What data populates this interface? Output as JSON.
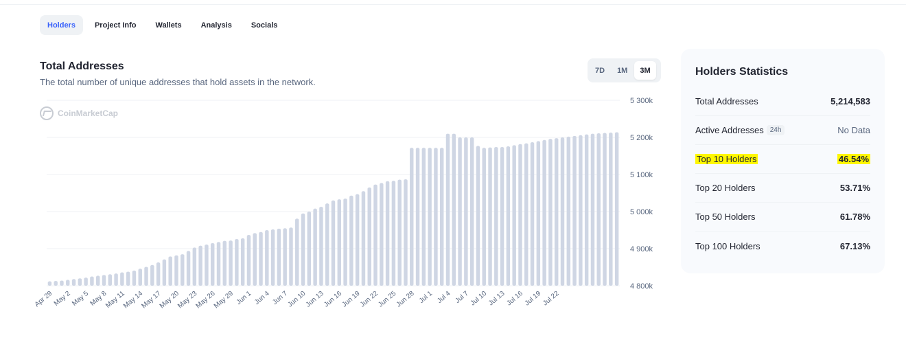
{
  "tabs": [
    {
      "label": "Holders",
      "active": true
    },
    {
      "label": "Project Info",
      "active": false
    },
    {
      "label": "Wallets",
      "active": false
    },
    {
      "label": "Analysis",
      "active": false
    },
    {
      "label": "Socials",
      "active": false
    }
  ],
  "watermark": "CoinMarketCap",
  "ranges": [
    {
      "label": "7D",
      "active": false
    },
    {
      "label": "1M",
      "active": false
    },
    {
      "label": "3M",
      "active": true
    }
  ],
  "stats": {
    "title": "Holders Statistics",
    "rows": [
      {
        "label": "Total Addresses",
        "badge": "",
        "value": "5,214,583",
        "highlight": false,
        "muted": false
      },
      {
        "label": "Active Addresses",
        "badge": "24h",
        "value": "No Data",
        "highlight": false,
        "muted": true
      },
      {
        "label": "Top 10 Holders",
        "badge": "",
        "value": "46.54%",
        "highlight": true,
        "muted": false
      },
      {
        "label": "Top 20 Holders",
        "badge": "",
        "value": "53.71%",
        "highlight": false,
        "muted": false
      },
      {
        "label": "Top 50 Holders",
        "badge": "",
        "value": "61.78%",
        "highlight": false,
        "muted": false
      },
      {
        "label": "Top 100 Holders",
        "badge": "",
        "value": "67.13%",
        "highlight": false,
        "muted": false
      }
    ]
  },
  "colors": {
    "bar": "#cfd6e4",
    "accent": "#3861fb",
    "highlight": "#fff701"
  },
  "chart_data": {
    "type": "bar",
    "title": "Total Addresses",
    "subtitle": "The total number of unique addresses that hold assets in the network.",
    "xlabel": "",
    "ylabel": "",
    "ylim": [
      4800,
      5300
    ],
    "yticks": [
      4800,
      4900,
      5000,
      5100,
      5200,
      5300
    ],
    "ytick_labels": [
      "4 800k",
      "4 900k",
      "5 000k",
      "5 100k",
      "5 200k",
      "5 300k"
    ],
    "grid": true,
    "x_tick_labels": [
      "Apr 29",
      "May 2",
      "May 5",
      "May 8",
      "May 11",
      "May 14",
      "May 17",
      "May 20",
      "May 23",
      "May 26",
      "May 29",
      "Jun 1",
      "Jun 4",
      "Jun 7",
      "Jun 10",
      "Jun 13",
      "Jun 16",
      "Jun 19",
      "Jun 22",
      "Jun 25",
      "Jun 28",
      "Jul 1",
      "Jul 4",
      "Jul 7",
      "Jul 10",
      "Jul 13",
      "Jul 16",
      "Jul 19",
      "Jul 22"
    ],
    "x_tick_every": 3,
    "values": [
      4812,
      4813,
      4814,
      4816,
      4818,
      4820,
      4822,
      4825,
      4827,
      4829,
      4831,
      4833,
      4836,
      4838,
      4841,
      4846,
      4851,
      4856,
      4863,
      4871,
      4879,
      4882,
      4885,
      4894,
      4903,
      4908,
      4911,
      4915,
      4918,
      4921,
      4922,
      4926,
      4928,
      4937,
      4942,
      4945,
      4950,
      4952,
      4954,
      4955,
      4957,
      4981,
      4995,
      5000,
      5008,
      5013,
      5022,
      5030,
      5033,
      5035,
      5043,
      5047,
      5055,
      5065,
      5073,
      5077,
      5082,
      5083,
      5086,
      5087,
      5172,
      5172,
      5172,
      5172,
      5172,
      5172,
      5210,
      5210,
      5200,
      5200,
      5200,
      5177,
      5172,
      5173,
      5174,
      5174,
      5176,
      5179,
      5182,
      5184,
      5187,
      5190,
      5193,
      5196,
      5198,
      5200,
      5202,
      5204,
      5206,
      5208,
      5210,
      5211,
      5212,
      5213,
      5214
    ]
  }
}
